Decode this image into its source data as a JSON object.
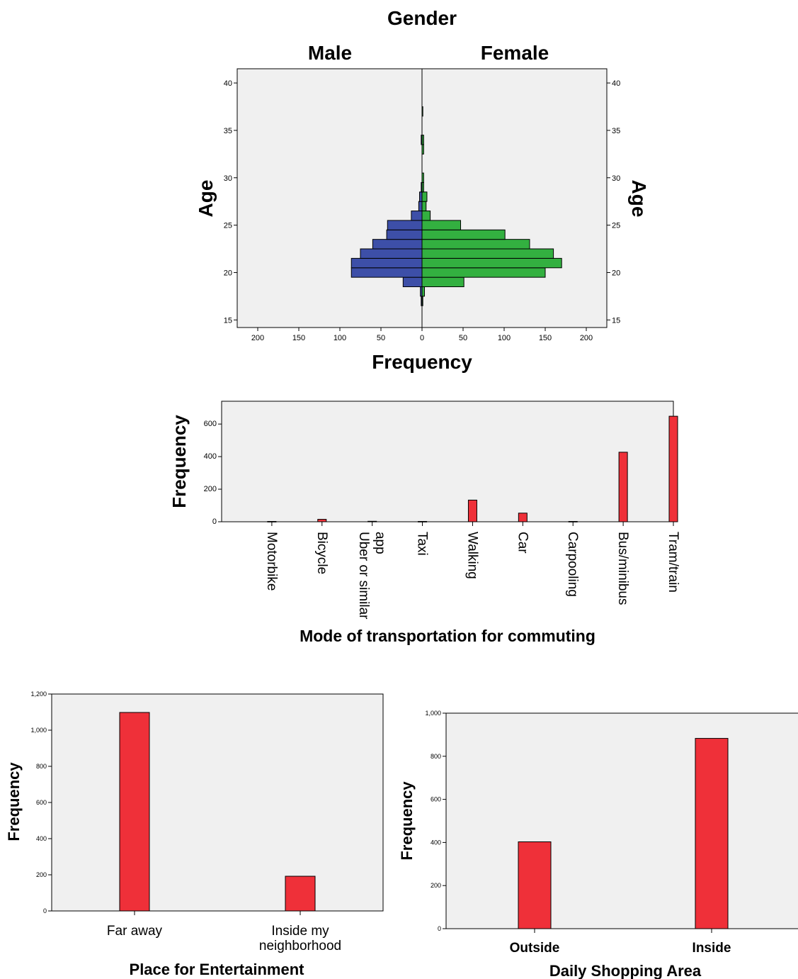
{
  "chart_data": [
    {
      "type": "bar",
      "id": "pyramid",
      "orientation": "horizontal",
      "title": "Gender",
      "panels": [
        "Male",
        "Female"
      ],
      "xlabel": "Frequency",
      "ylabel": "Age",
      "ylabel_right": "Age",
      "xlim": [
        0,
        225
      ],
      "ylim": [
        14.2,
        41.5
      ],
      "xticks": [
        "200",
        "150",
        "100",
        "50",
        "0",
        "50",
        "100",
        "150",
        "200"
      ],
      "yticks": [
        15,
        20,
        25,
        30,
        35,
        40
      ],
      "colors": {
        "male": "#3d4fa8",
        "female": "#33b040"
      },
      "series": [
        {
          "name": "Male",
          "values": [
            {
              "age": 17,
              "value": 1
            },
            {
              "age": 18,
              "value": 2
            },
            {
              "age": 19,
              "value": 23
            },
            {
              "age": 20,
              "value": 86
            },
            {
              "age": 21,
              "value": 86
            },
            {
              "age": 22,
              "value": 75
            },
            {
              "age": 23,
              "value": 60
            },
            {
              "age": 24,
              "value": 43
            },
            {
              "age": 25,
              "value": 42
            },
            {
              "age": 26,
              "value": 13
            },
            {
              "age": 27,
              "value": 4
            },
            {
              "age": 28,
              "value": 3
            },
            {
              "age": 29,
              "value": 1
            },
            {
              "age": 34,
              "value": 1
            }
          ]
        },
        {
          "name": "Female",
          "values": [
            {
              "age": 17,
              "value": 1
            },
            {
              "age": 18,
              "value": 3
            },
            {
              "age": 19,
              "value": 51
            },
            {
              "age": 20,
              "value": 150
            },
            {
              "age": 21,
              "value": 170
            },
            {
              "age": 22,
              "value": 160
            },
            {
              "age": 23,
              "value": 131
            },
            {
              "age": 24,
              "value": 101
            },
            {
              "age": 25,
              "value": 47
            },
            {
              "age": 26,
              "value": 10
            },
            {
              "age": 27,
              "value": 5
            },
            {
              "age": 28,
              "value": 6
            },
            {
              "age": 29,
              "value": 2
            },
            {
              "age": 30,
              "value": 2
            },
            {
              "age": 33,
              "value": 2
            },
            {
              "age": 34,
              "value": 2
            },
            {
              "age": 37,
              "value": 1
            }
          ]
        }
      ]
    },
    {
      "type": "bar",
      "id": "transport",
      "title": "",
      "xlabel": "Mode of transportation for commuting",
      "ylabel": "Frequency",
      "ylim": [
        0,
        740
      ],
      "yticks": [
        0,
        200,
        400,
        600
      ],
      "color": "#ef3039",
      "categories": [
        "Motorbike",
        "Bicycle",
        "Uber or similar app",
        "Taxi",
        "Walking",
        "Car",
        "Carpooling",
        "Bus/minibus",
        "Tram/train"
      ],
      "category_lines": [
        [
          "Motorbike"
        ],
        [
          "Bicycle"
        ],
        [
          "Uber or similar",
          "app"
        ],
        [
          "Taxi"
        ],
        [
          "Walking"
        ],
        [
          "Car"
        ],
        [
          "Carpooling"
        ],
        [
          "Bus/minibus"
        ],
        [
          "Tram/train"
        ]
      ],
      "values": [
        2,
        15,
        3,
        2,
        133,
        53,
        2,
        427,
        648
      ]
    },
    {
      "type": "bar",
      "id": "entertainment",
      "title": "",
      "xlabel": "Place for Entertainment",
      "ylabel": "Frequency",
      "ylim": [
        0,
        1200
      ],
      "yticks": [
        "0",
        "200",
        "400",
        "600",
        "800",
        "1,000",
        "1,200"
      ],
      "color": "#ef3039",
      "categories": [
        "Far away",
        "Inside my neighborhood"
      ],
      "category_lines": [
        [
          "Far away"
        ],
        [
          "Inside my",
          "neighborhood"
        ]
      ],
      "values": [
        1098,
        192
      ]
    },
    {
      "type": "bar",
      "id": "shopping",
      "title": "",
      "xlabel": "Daily Shopping Area",
      "ylabel": "Frequency",
      "ylim": [
        0,
        1000
      ],
      "yticks": [
        "0",
        "200",
        "400",
        "600",
        "800",
        "1,000"
      ],
      "color": "#ef3039",
      "categories": [
        "Outside",
        "Inside"
      ],
      "category_lines": [
        [
          "Outside"
        ],
        [
          "Inside"
        ]
      ],
      "values": [
        403,
        883
      ]
    }
  ]
}
